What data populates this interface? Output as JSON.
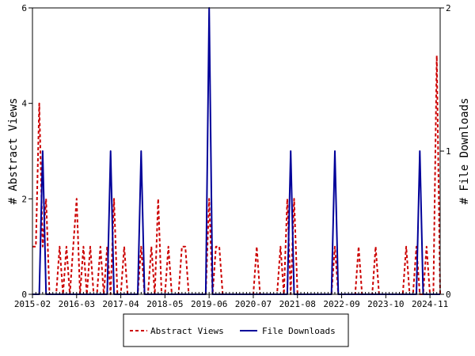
{
  "chart_data": {
    "type": "line",
    "title": "",
    "xlabel": "",
    "ylabel_left": "# Abstract Views",
    "ylabel_right": "# File Downloads",
    "ylim_left": [
      0,
      6
    ],
    "ylim_right": [
      0,
      2
    ],
    "yticks_left": [
      "0",
      "2",
      "4",
      "6"
    ],
    "yticks_right": [
      "0",
      "1",
      "2"
    ],
    "x_tick_labels": [
      "2015-02",
      "2016-03",
      "2017-04",
      "2018-05",
      "2019-06",
      "2020-07",
      "2021-08",
      "2022-09",
      "2023-10",
      "2024-11"
    ],
    "grid": false,
    "legend": "bottom",
    "series": [
      {
        "name": "Abstract Views",
        "axis": "left",
        "style": "dashed",
        "color": "#cc0000",
        "points": [
          [
            "2015-02",
            1
          ],
          [
            "2015-03",
            1
          ],
          [
            "2015-04",
            4
          ],
          [
            "2015-05",
            1
          ],
          [
            "2015-06",
            2
          ],
          [
            "2015-07",
            0
          ],
          [
            "2015-08",
            0
          ],
          [
            "2015-09",
            0
          ],
          [
            "2015-10",
            1
          ],
          [
            "2015-11",
            0
          ],
          [
            "2015-12",
            1
          ],
          [
            "2016-01",
            0
          ],
          [
            "2016-02",
            1
          ],
          [
            "2016-03",
            2
          ],
          [
            "2016-04",
            0
          ],
          [
            "2016-05",
            1
          ],
          [
            "2016-06",
            0
          ],
          [
            "2016-07",
            1
          ],
          [
            "2016-08",
            0
          ],
          [
            "2016-09",
            0
          ],
          [
            "2016-10",
            1
          ],
          [
            "2016-11",
            0
          ],
          [
            "2016-12",
            1
          ],
          [
            "2017-01",
            0
          ],
          [
            "2017-02",
            2
          ],
          [
            "2017-03",
            0
          ],
          [
            "2017-04",
            0
          ],
          [
            "2017-05",
            1
          ],
          [
            "2017-06",
            0
          ],
          [
            "2017-07",
            0
          ],
          [
            "2017-08",
            0
          ],
          [
            "2017-09",
            0
          ],
          [
            "2017-10",
            1
          ],
          [
            "2017-11",
            0
          ],
          [
            "2017-12",
            0
          ],
          [
            "2018-01",
            1
          ],
          [
            "2018-02",
            0
          ],
          [
            "2018-03",
            2
          ],
          [
            "2018-04",
            0
          ],
          [
            "2018-05",
            0
          ],
          [
            "2018-06",
            1
          ],
          [
            "2018-07",
            0
          ],
          [
            "2018-08",
            0
          ],
          [
            "2018-09",
            0
          ],
          [
            "2018-10",
            1
          ],
          [
            "2018-11",
            1
          ],
          [
            "2018-12",
            0
          ],
          [
            "2019-01",
            0
          ],
          [
            "2019-02",
            0
          ],
          [
            "2019-03",
            0
          ],
          [
            "2019-04",
            0
          ],
          [
            "2019-05",
            0
          ],
          [
            "2019-06",
            2
          ],
          [
            "2019-07",
            0
          ],
          [
            "2019-08",
            1
          ],
          [
            "2019-09",
            1
          ],
          [
            "2019-10",
            0
          ],
          [
            "2019-11",
            0
          ],
          [
            "2019-12",
            0
          ],
          [
            "2020-01",
            0
          ],
          [
            "2020-02",
            0
          ],
          [
            "2020-03",
            0
          ],
          [
            "2020-04",
            0
          ],
          [
            "2020-05",
            0
          ],
          [
            "2020-06",
            0
          ],
          [
            "2020-07",
            0
          ],
          [
            "2020-08",
            1
          ],
          [
            "2020-09",
            0
          ],
          [
            "2020-10",
            0
          ],
          [
            "2020-11",
            0
          ],
          [
            "2020-12",
            0
          ],
          [
            "2021-01",
            0
          ],
          [
            "2021-02",
            0
          ],
          [
            "2021-03",
            1
          ],
          [
            "2021-04",
            0
          ],
          [
            "2021-05",
            2
          ],
          [
            "2021-06",
            0
          ],
          [
            "2021-07",
            2
          ],
          [
            "2021-08",
            0
          ],
          [
            "2021-09",
            0
          ],
          [
            "2021-10",
            0
          ],
          [
            "2021-11",
            0
          ],
          [
            "2021-12",
            0
          ],
          [
            "2022-01",
            0
          ],
          [
            "2022-02",
            0
          ],
          [
            "2022-03",
            0
          ],
          [
            "2022-04",
            0
          ],
          [
            "2022-05",
            0
          ],
          [
            "2022-06",
            0
          ],
          [
            "2022-07",
            1
          ],
          [
            "2022-08",
            0
          ],
          [
            "2022-09",
            0
          ],
          [
            "2022-10",
            0
          ],
          [
            "2022-11",
            0
          ],
          [
            "2022-12",
            0
          ],
          [
            "2023-01",
            0
          ],
          [
            "2023-02",
            1
          ],
          [
            "2023-03",
            0
          ],
          [
            "2023-04",
            0
          ],
          [
            "2023-05",
            0
          ],
          [
            "2023-06",
            0
          ],
          [
            "2023-07",
            1
          ],
          [
            "2023-08",
            0
          ],
          [
            "2023-09",
            0
          ],
          [
            "2023-10",
            0
          ],
          [
            "2023-11",
            0
          ],
          [
            "2023-12",
            0
          ],
          [
            "2024-01",
            0
          ],
          [
            "2024-02",
            0
          ],
          [
            "2024-03",
            0
          ],
          [
            "2024-04",
            1
          ],
          [
            "2024-05",
            0
          ],
          [
            "2024-06",
            0
          ],
          [
            "2024-07",
            1
          ],
          [
            "2024-08",
            0
          ],
          [
            "2024-09",
            0
          ],
          [
            "2024-10",
            1
          ],
          [
            "2024-11",
            0
          ],
          [
            "2024-12",
            0
          ],
          [
            "2025-01",
            5
          ],
          [
            "2025-02",
            0
          ]
        ]
      },
      {
        "name": "File Downloads",
        "axis": "right",
        "style": "solid",
        "color": "#000099",
        "points": [
          [
            "2015-02",
            0
          ],
          [
            "2015-03",
            0
          ],
          [
            "2015-04",
            0
          ],
          [
            "2015-05",
            1
          ],
          [
            "2015-06",
            0
          ],
          [
            "2015-07",
            0
          ],
          [
            "2016-12",
            0
          ],
          [
            "2017-01",
            1
          ],
          [
            "2017-02",
            0
          ],
          [
            "2017-03",
            0
          ],
          [
            "2017-04",
            0
          ],
          [
            "2017-09",
            0
          ],
          [
            "2017-10",
            1
          ],
          [
            "2017-11",
            0
          ],
          [
            "2018-01",
            0
          ],
          [
            "2019-05",
            0
          ],
          [
            "2019-06",
            2
          ],
          [
            "2019-07",
            0
          ],
          [
            "2019-08",
            0
          ],
          [
            "2021-05",
            0
          ],
          [
            "2021-06",
            1
          ],
          [
            "2021-07",
            0
          ],
          [
            "2021-08",
            0
          ],
          [
            "2022-06",
            0
          ],
          [
            "2022-07",
            1
          ],
          [
            "2022-08",
            0
          ],
          [
            "2022-09",
            0
          ],
          [
            "2024-07",
            0
          ],
          [
            "2024-08",
            1
          ],
          [
            "2024-09",
            0
          ],
          [
            "2024-10",
            0
          ],
          [
            "2025-02",
            0
          ]
        ]
      }
    ]
  }
}
